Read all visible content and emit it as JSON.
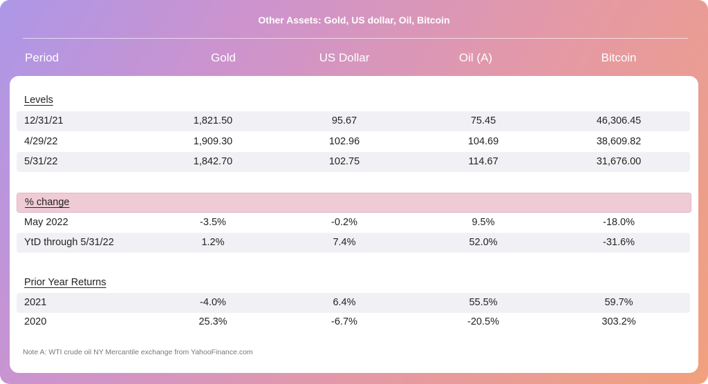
{
  "title": "Other Assets: Gold, US dollar, Oil, Bitcoin",
  "columns": [
    "Period",
    "Gold",
    "US Dollar",
    "Oil (A)",
    "Bitcoin"
  ],
  "sections": {
    "levels": {
      "label": "Levels",
      "rows": [
        [
          "12/31/21",
          "1,821.50",
          "95.67",
          "75.45",
          "46,306.45"
        ],
        [
          "4/29/22",
          "1,909.30",
          "102.96",
          "104.69",
          "38,609.82"
        ],
        [
          "5/31/22",
          "1,842.70",
          "102.75",
          "114.67",
          "31,676.00"
        ]
      ]
    },
    "pct_change": {
      "label": "% change",
      "rows": [
        [
          "May 2022",
          "-3.5%",
          "-0.2%",
          "9.5%",
          "-18.0%"
        ],
        [
          "YtD through 5/31/22",
          "1.2%",
          "7.4%",
          "52.0%",
          "-31.6%"
        ]
      ]
    },
    "prior_year": {
      "label": "Prior Year Returns",
      "rows": [
        [
          "2021",
          "-4.0%",
          "6.4%",
          "55.5%",
          "59.7%"
        ],
        [
          "2020",
          "25.3%",
          "-6.7%",
          "-20.5%",
          "303.2%"
        ]
      ]
    }
  },
  "note": "Note A: WTI crude oil NY Mercantile exchange from YahooFinance.com"
}
